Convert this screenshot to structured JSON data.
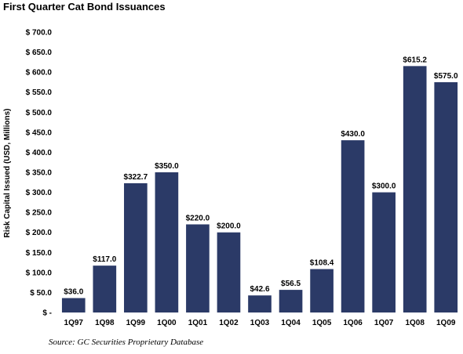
{
  "chart_data": {
    "type": "bar",
    "title": "First Quarter Cat Bond Issuances",
    "ylabel": "Risk Capital Issued (USD, Millions)",
    "xlabel": "",
    "ylim": [
      0,
      700
    ],
    "yticks": [
      0,
      50,
      100,
      150,
      200,
      250,
      300,
      350,
      400,
      450,
      500,
      550,
      600,
      650,
      700
    ],
    "ytick_labels": [
      "$ -",
      "$ 50.0",
      "$ 100.0",
      "$ 150.0",
      "$ 200.0",
      "$ 250.0",
      "$ 300.0",
      "$ 350.0",
      "$ 400.0",
      "$ 450.0",
      "$ 500.0",
      "$ 550.0",
      "$ 600.0",
      "$ 650.0",
      "$ 700.0"
    ],
    "categories": [
      "1Q97",
      "1Q98",
      "1Q99",
      "1Q00",
      "1Q01",
      "1Q02",
      "1Q03",
      "1Q04",
      "1Q05",
      "1Q06",
      "1Q07",
      "1Q08",
      "1Q09"
    ],
    "values": [
      36.0,
      117.0,
      322.7,
      350.0,
      220.0,
      200.0,
      42.6,
      56.5,
      108.4,
      430.0,
      300.0,
      615.2,
      575.0
    ],
    "data_labels": [
      "$36.0",
      "$117.0",
      "$322.7",
      "$350.0",
      "$220.0",
      "$200.0",
      "$42.6",
      "$56.5",
      "$108.4",
      "$430.0",
      "$300.0",
      "$615.2",
      "$575.0"
    ],
    "bar_color": "#2b3a67",
    "grid": false,
    "source": "Source: GC Securities Proprietary Database"
  }
}
